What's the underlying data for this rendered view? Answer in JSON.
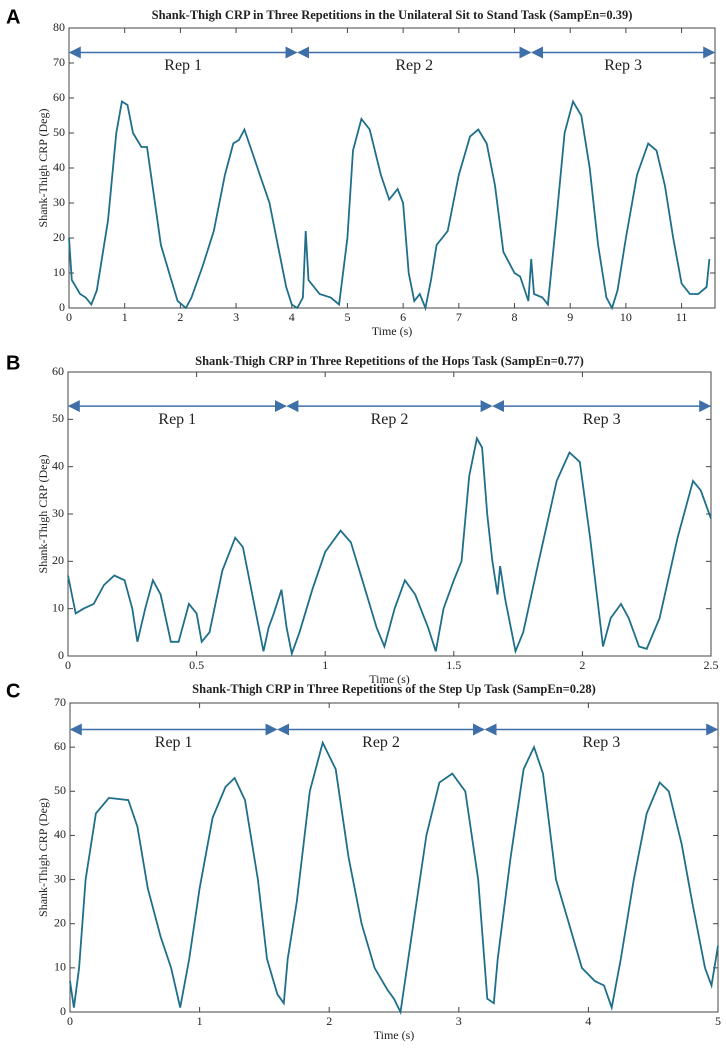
{
  "chart_data": [
    {
      "type": "line",
      "panel": "A",
      "title": "Shank-Thigh CRP in Three Repetitions in the Unilateral Sit to Stand Task (SampEn=0.39)",
      "xlabel": "Time (s)",
      "ylabel": "Shank-Thigh CRP (Deg)",
      "color": "#1f6f8b",
      "xlim": [
        0,
        11.6
      ],
      "xticks": [
        0,
        1,
        2,
        3,
        4,
        5,
        6,
        7,
        8,
        9,
        10,
        11
      ],
      "ylim": [
        0,
        80
      ],
      "yticks": [
        0,
        10,
        20,
        30,
        40,
        50,
        60,
        70,
        80
      ],
      "annotations": [
        {
          "text": "Rep 1",
          "start": 0,
          "end": 4.1,
          "y": 73
        },
        {
          "text": "Rep 2",
          "start": 4.1,
          "end": 8.3,
          "y": 73
        },
        {
          "text": "Rep 3",
          "start": 8.3,
          "end": 11.6,
          "y": 73
        }
      ],
      "x": [
        0,
        0.05,
        0.2,
        0.3,
        0.4,
        0.5,
        0.7,
        0.85,
        0.95,
        1.05,
        1.15,
        1.3,
        1.4,
        1.5,
        1.65,
        1.8,
        1.95,
        2.1,
        2.2,
        2.4,
        2.6,
        2.8,
        2.95,
        3.05,
        3.15,
        3.3,
        3.45,
        3.6,
        3.75,
        3.9,
        4.0,
        4.1,
        4.2,
        4.25,
        4.3,
        4.5,
        4.7,
        4.85,
        5.0,
        5.1,
        5.25,
        5.4,
        5.6,
        5.75,
        5.9,
        6.0,
        6.1,
        6.2,
        6.3,
        6.4,
        6.5,
        6.6,
        6.8,
        7.0,
        7.2,
        7.35,
        7.5,
        7.65,
        7.8,
        8.0,
        8.1,
        8.25,
        8.3,
        8.35,
        8.5,
        8.6,
        8.75,
        8.9,
        9.05,
        9.2,
        9.35,
        9.5,
        9.65,
        9.75,
        9.85,
        10.0,
        10.2,
        10.4,
        10.55,
        10.7,
        10.85,
        11.0,
        11.15,
        11.3,
        11.45,
        11.5
      ],
      "values": [
        20,
        8,
        4,
        3,
        1,
        5,
        25,
        50,
        59,
        58,
        50,
        46,
        46,
        35,
        18,
        10,
        2,
        0,
        3,
        12,
        22,
        38,
        47,
        48,
        51,
        44,
        37,
        30,
        18,
        6,
        1,
        0,
        3,
        22,
        8,
        4,
        3,
        1,
        20,
        45,
        54,
        51,
        38,
        31,
        34,
        30,
        10,
        2,
        4,
        0,
        8,
        18,
        22,
        38,
        49,
        51,
        47,
        35,
        16,
        10,
        9,
        2,
        14,
        4,
        3,
        1,
        25,
        50,
        59,
        55,
        40,
        18,
        3,
        0,
        5,
        20,
        38,
        47,
        45,
        35,
        20,
        7,
        4,
        4,
        6,
        14
      ]
    },
    {
      "type": "line",
      "panel": "B",
      "title": "Shank-Thigh CRP in Three Repetitions of the Hops Task (SampEn=0.77)",
      "xlabel": "Time (s)",
      "ylabel": "Shank-Thigh CRP (Deg)",
      "color": "#1f6f8b",
      "xlim": [
        0,
        2.5
      ],
      "xticks": [
        0,
        0.5,
        1,
        1.5,
        2,
        2.5
      ],
      "ylim": [
        0,
        60
      ],
      "yticks": [
        0,
        10,
        20,
        30,
        40,
        50,
        60
      ],
      "annotations": [
        {
          "text": "Rep 1",
          "start": 0,
          "end": 0.85,
          "y": 52.8
        },
        {
          "text": "Rep 2",
          "start": 0.85,
          "end": 1.65,
          "y": 52.8
        },
        {
          "text": "Rep 3",
          "start": 1.65,
          "end": 2.5,
          "y": 52.8
        }
      ],
      "x": [
        0,
        0.03,
        0.06,
        0.1,
        0.14,
        0.18,
        0.22,
        0.25,
        0.27,
        0.3,
        0.33,
        0.36,
        0.4,
        0.43,
        0.47,
        0.5,
        0.52,
        0.55,
        0.6,
        0.65,
        0.68,
        0.72,
        0.76,
        0.78,
        0.8,
        0.83,
        0.85,
        0.87,
        0.9,
        0.95,
        1.0,
        1.06,
        1.1,
        1.15,
        1.2,
        1.23,
        1.27,
        1.31,
        1.35,
        1.4,
        1.43,
        1.46,
        1.5,
        1.53,
        1.56,
        1.59,
        1.61,
        1.63,
        1.65,
        1.67,
        1.68,
        1.7,
        1.74,
        1.77,
        1.83,
        1.9,
        1.95,
        1.99,
        2.03,
        2.08,
        2.11,
        2.15,
        2.18,
        2.22,
        2.25,
        2.3,
        2.37,
        2.43,
        2.46,
        2.5
      ],
      "values": [
        17,
        9,
        10,
        11,
        15,
        17,
        16,
        10,
        3,
        10,
        16,
        13,
        3,
        3,
        11,
        9,
        3,
        5,
        18,
        25,
        23,
        12,
        1,
        6,
        9,
        14,
        6,
        0.5,
        5,
        14,
        22,
        26.5,
        24,
        15,
        6,
        2,
        10,
        16,
        13,
        6,
        1,
        10,
        16,
        20,
        38,
        46,
        44,
        30,
        20,
        13,
        19,
        12,
        1,
        5,
        20,
        37,
        43,
        41,
        25,
        2,
        8,
        11,
        8,
        2,
        1.5,
        8,
        25,
        37,
        35,
        29
      ]
    },
    {
      "type": "line",
      "panel": "C",
      "title": "Shank-Thigh CRP in Three Repetitions of the Step Up Task (SampEn=0.28)",
      "xlabel": "Time (s)",
      "ylabel": "Shank-Thigh CRP (Deg)",
      "color": "#1f6f8b",
      "xlim": [
        0,
        5
      ],
      "xticks": [
        0,
        1,
        2,
        3,
        4,
        5
      ],
      "ylim": [
        0,
        70
      ],
      "yticks": [
        0,
        10,
        20,
        30,
        40,
        50,
        60,
        70
      ],
      "annotations": [
        {
          "text": "Rep 1",
          "start": 0,
          "end": 1.6,
          "y": 64
        },
        {
          "text": "Rep 2",
          "start": 1.6,
          "end": 3.2,
          "y": 64
        },
        {
          "text": "Rep 3",
          "start": 3.2,
          "end": 5,
          "y": 64
        }
      ],
      "x": [
        0,
        0.03,
        0.07,
        0.12,
        0.2,
        0.3,
        0.45,
        0.52,
        0.6,
        0.7,
        0.78,
        0.85,
        0.92,
        1.0,
        1.1,
        1.2,
        1.27,
        1.35,
        1.45,
        1.52,
        1.6,
        1.65,
        1.68,
        1.75,
        1.85,
        1.95,
        2.05,
        2.15,
        2.25,
        2.35,
        2.45,
        2.5,
        2.55,
        2.65,
        2.75,
        2.85,
        2.95,
        3.05,
        3.15,
        3.22,
        3.27,
        3.3,
        3.4,
        3.5,
        3.58,
        3.65,
        3.75,
        3.85,
        3.95,
        4.05,
        4.12,
        4.18,
        4.25,
        4.35,
        4.45,
        4.55,
        4.62,
        4.72,
        4.8,
        4.9,
        4.95,
        5.0
      ],
      "values": [
        7,
        1,
        10,
        30,
        45,
        48.5,
        48,
        42,
        28,
        17,
        10,
        1,
        12,
        28,
        44,
        51,
        53,
        48,
        30,
        12,
        4,
        2,
        12,
        25,
        50,
        61,
        55,
        35,
        20,
        10,
        5,
        3,
        0,
        20,
        40,
        52,
        54,
        50,
        30,
        3,
        2,
        12,
        35,
        55,
        60,
        54,
        30,
        20,
        10,
        7,
        6,
        1,
        12,
        30,
        45,
        52,
        50,
        38,
        25,
        10,
        6,
        15
      ]
    }
  ]
}
